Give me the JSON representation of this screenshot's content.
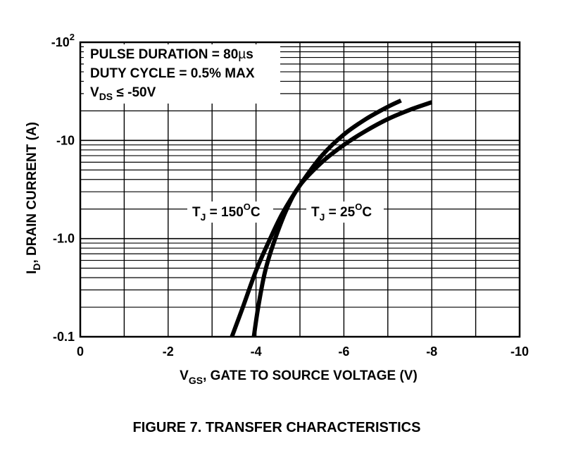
{
  "chart_data": {
    "type": "line",
    "caption": "FIGURE 7.  TRANSFER CHARACTERISTICS",
    "xlabel": {
      "main": "V",
      "sub": "GS",
      "rest": ", GATE TO SOURCE VOLTAGE (V)"
    },
    "ylabel": {
      "main": "I",
      "sub": "D",
      "rest": ", DRAIN CURRENT (A)"
    },
    "x_axis": {
      "range": [
        0,
        -10
      ],
      "ticks": [
        0,
        -2,
        -4,
        -6,
        -8,
        -10
      ],
      "tick_labels": [
        "0",
        "-2",
        "-4",
        "-6",
        "-8",
        "-10"
      ],
      "gridlines": [
        0,
        -1,
        -2,
        -3,
        -4,
        -5,
        -6,
        -7,
        -8,
        -9,
        -10
      ]
    },
    "y_axis": {
      "scale": "log",
      "range": [
        -0.1,
        -100
      ],
      "ticks": [
        -0.1,
        -1.0,
        -10,
        -100
      ],
      "tick_labels": [
        {
          "main": "-0.1",
          "sup": ""
        },
        {
          "main": "-1.0",
          "sup": ""
        },
        {
          "main": "-10",
          "sup": ""
        },
        {
          "main": "-10",
          "sup": "2"
        }
      ]
    },
    "grid": true,
    "conditions": [
      {
        "main": "PULSE DURATION = 80",
        "greek": "µ",
        "tail": "s"
      },
      {
        "main": "DUTY CYCLE = 0.5% MAX"
      },
      {
        "main": "V",
        "sub": "DS",
        "tail": " ≤ -50V"
      }
    ],
    "series": [
      {
        "name": {
          "main": "T",
          "sub": "J",
          "mid": " = 150",
          "sup": "O",
          "tail": "C"
        },
        "x": [
          -3.45,
          -3.7,
          -4.0,
          -4.3,
          -4.6,
          -5.0,
          -5.5,
          -6.0,
          -6.5,
          -7.0,
          -7.3
        ],
        "y": [
          -0.1,
          -0.2,
          -0.47,
          -0.95,
          -1.8,
          -3.5,
          -7.0,
          -11.5,
          -16.5,
          -22.0,
          -25.5
        ]
      },
      {
        "name": {
          "main": "T",
          "sub": "J",
          "mid": " = 25",
          "sup": "O",
          "tail": "C"
        },
        "x": [
          -3.95,
          -4.05,
          -4.2,
          -4.4,
          -4.7,
          -5.0,
          -5.5,
          -6.0,
          -6.5,
          -7.0,
          -7.5,
          -8.0
        ],
        "y": [
          -0.1,
          -0.2,
          -0.45,
          -0.9,
          -2.0,
          -3.5,
          -6.0,
          -9.0,
          -12.5,
          -16.5,
          -20.5,
          -24.5
        ]
      }
    ]
  }
}
